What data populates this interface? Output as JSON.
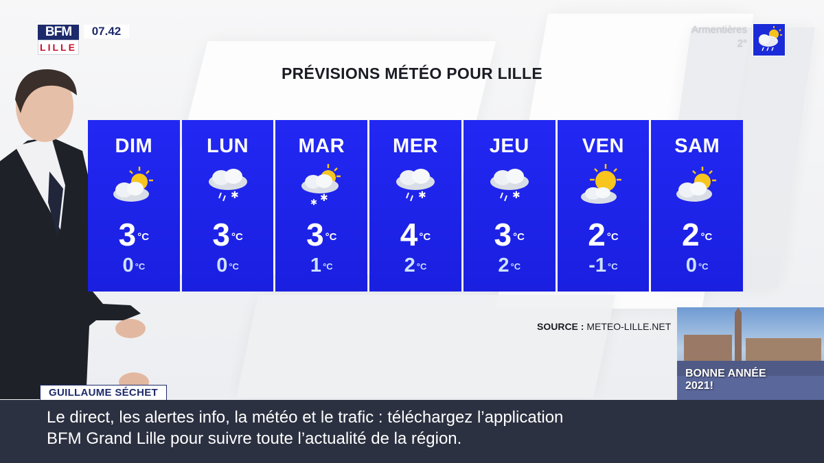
{
  "channel": {
    "logo_top": "BFM",
    "logo_bottom": "LILLE",
    "time": "07.42"
  },
  "city_weather": {
    "city": "Armentières",
    "temp": "2°",
    "icon": "cloud-rain-sun-icon"
  },
  "forecast": {
    "title": "PRÉVISIONS MÉTÉO POUR LILLE",
    "unit": "°C",
    "days": [
      {
        "name": "DIM",
        "icon": "partly-cloudy-icon",
        "max": "3",
        "min": "0"
      },
      {
        "name": "LUN",
        "icon": "cloud-rain-snow-icon",
        "max": "3",
        "min": "0"
      },
      {
        "name": "MAR",
        "icon": "sun-cloud-snow-icon",
        "max": "3",
        "min": "1"
      },
      {
        "name": "MER",
        "icon": "cloud-rain-snow-icon",
        "max": "4",
        "min": "2"
      },
      {
        "name": "JEU",
        "icon": "cloud-rain-snow-icon",
        "max": "3",
        "min": "2"
      },
      {
        "name": "VEN",
        "icon": "sun-small-cloud-icon",
        "max": "2",
        "min": "-1"
      },
      {
        "name": "SAM",
        "icon": "partly-cloudy-icon",
        "max": "2",
        "min": "0"
      }
    ],
    "source_label": "SOURCE :",
    "source_value": "METEO-LILLE.NET"
  },
  "thumbnail": {
    "line1": "BONNE ANNÉE",
    "line2": "2021!"
  },
  "presenter": {
    "name": "GUILLAUME SÉCHET"
  },
  "ticker": {
    "line1": "Le direct, les alertes info, la météo et le trafic : téléchargez l’application",
    "line2": "BFM Grand Lille pour suivre toute l’actualité de la région."
  },
  "colors": {
    "panel_blue": "#1d22ea",
    "brand_navy": "#1d2a6b",
    "brand_red": "#c8102e",
    "ticker_bg": "#2c3141"
  }
}
